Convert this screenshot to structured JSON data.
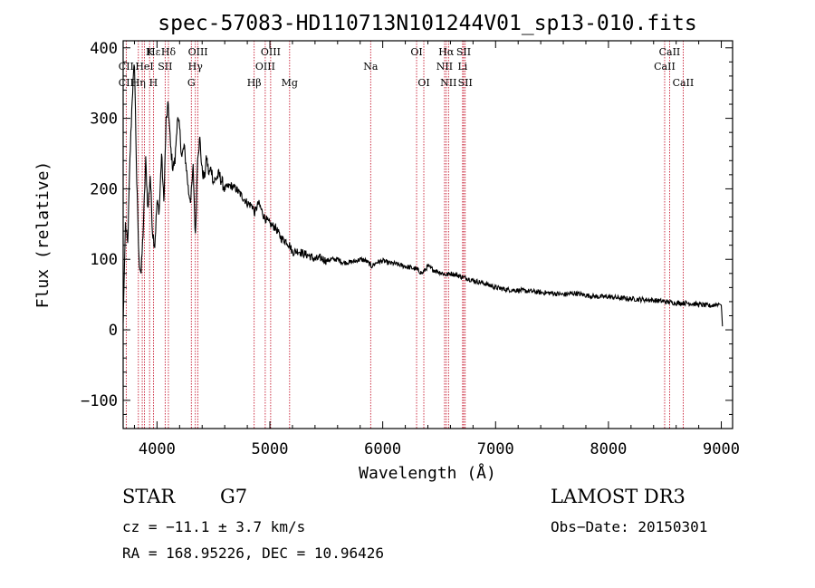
{
  "chart_data": {
    "type": "line",
    "title": "spec-57083-HD110713N101244V01_sp13-010.fits",
    "xlabel": "Wavelength (Å)",
    "ylabel": "Flux (relative)",
    "xlim": [
      3700,
      9100
    ],
    "ylim": [
      -140,
      410
    ],
    "x_ticks": [
      4000,
      5000,
      6000,
      7000,
      8000,
      9000
    ],
    "y_ticks": [
      -100,
      0,
      100,
      200,
      300,
      400
    ],
    "series": [
      {
        "name": "spectrum",
        "x": [
          3700,
          3720,
          3740,
          3760,
          3780,
          3800,
          3820,
          3840,
          3860,
          3880,
          3900,
          3920,
          3940,
          3960,
          3980,
          4000,
          4020,
          4040,
          4060,
          4080,
          4100,
          4120,
          4140,
          4160,
          4180,
          4200,
          4220,
          4240,
          4260,
          4280,
          4300,
          4320,
          4340,
          4360,
          4380,
          4400,
          4420,
          4440,
          4460,
          4480,
          4500,
          4550,
          4600,
          4650,
          4700,
          4750,
          4800,
          4850,
          4861,
          4900,
          4950,
          5000,
          5050,
          5100,
          5150,
          5175,
          5200,
          5250,
          5300,
          5350,
          5400,
          5450,
          5500,
          5550,
          5600,
          5650,
          5700,
          5750,
          5800,
          5850,
          5893,
          5900,
          5950,
          6000,
          6050,
          6100,
          6150,
          6200,
          6250,
          6300,
          6350,
          6400,
          6450,
          6500,
          6563,
          6600,
          6650,
          6700,
          6750,
          6800,
          6900,
          7000,
          7100,
          7200,
          7300,
          7400,
          7500,
          7600,
          7700,
          7800,
          7900,
          8000,
          8100,
          8200,
          8300,
          8400,
          8500,
          8600,
          8700,
          8800,
          8900,
          8950,
          8980,
          9000,
          9010
        ],
        "y": [
          10,
          150,
          120,
          240,
          330,
          380,
          210,
          100,
          80,
          150,
          240,
          170,
          220,
          140,
          120,
          180,
          170,
          250,
          180,
          295,
          320,
          260,
          230,
          240,
          300,
          285,
          245,
          260,
          230,
          195,
          185,
          230,
          130,
          250,
          270,
          225,
          215,
          245,
          220,
          230,
          210,
          220,
          200,
          205,
          200,
          190,
          180,
          175,
          165,
          180,
          160,
          150,
          145,
          130,
          125,
          120,
          110,
          112,
          108,
          105,
          100,
          102,
          98,
          100,
          100,
          95,
          96,
          97,
          100,
          98,
          92,
          90,
          96,
          98,
          95,
          94,
          92,
          90,
          88,
          86,
          80,
          90,
          85,
          82,
          78,
          80,
          78,
          75,
          73,
          70,
          66,
          60,
          57,
          56,
          55,
          53,
          52,
          50,
          52,
          49,
          47,
          47,
          45,
          44,
          43,
          42,
          40,
          38,
          38,
          36,
          34,
          36,
          37,
          35,
          5
        ],
        "color": "#000000"
      }
    ],
    "lines": [
      {
        "label": "Hε",
        "wl": 3970,
        "row": 0
      },
      {
        "label": "K",
        "wl": 3934,
        "row": 0
      },
      {
        "label": "Hδ",
        "wl": 4101,
        "row": 0
      },
      {
        "label": "OIII",
        "wl": 4363,
        "row": 0
      },
      {
        "label": "OIII",
        "wl": 5007,
        "row": 0
      },
      {
        "label": "OI",
        "wl": 6300,
        "row": 0
      },
      {
        "label": "Hα",
        "wl": 6563,
        "row": 0
      },
      {
        "label": "SII",
        "wl": 6717,
        "row": 0
      },
      {
        "label": "CaII",
        "wl": 8542,
        "row": 0
      },
      {
        "label": "CII",
        "wl": 3727,
        "row": 1
      },
      {
        "label": "HeI",
        "wl": 3889,
        "row": 1
      },
      {
        "label": "SII",
        "wl": 4072,
        "row": 1
      },
      {
        "label": "Hγ",
        "wl": 4340,
        "row": 1
      },
      {
        "label": "OIII",
        "wl": 4959,
        "row": 1
      },
      {
        "label": "Na",
        "wl": 5893,
        "row": 1
      },
      {
        "label": "NII",
        "wl": 6548,
        "row": 1
      },
      {
        "label": "Li",
        "wl": 6708,
        "row": 1
      },
      {
        "label": "CaII",
        "wl": 8498,
        "row": 1
      },
      {
        "label": "CII",
        "wl": 3727,
        "row": 2
      },
      {
        "label": "Hη",
        "wl": 3835,
        "row": 2
      },
      {
        "label": "H",
        "wl": 3968,
        "row": 2
      },
      {
        "label": "G",
        "wl": 4304,
        "row": 2
      },
      {
        "label": "Hβ",
        "wl": 4861,
        "row": 2
      },
      {
        "label": "Mg",
        "wl": 5175,
        "row": 2
      },
      {
        "label": "OI",
        "wl": 6364,
        "row": 2
      },
      {
        "label": "NII",
        "wl": 6583,
        "row": 2
      },
      {
        "label": "SII",
        "wl": 6731,
        "row": 2
      },
      {
        "label": "CaII",
        "wl": 8662,
        "row": 2
      }
    ],
    "marker_wavelengths": [
      3727,
      3835,
      3869,
      3889,
      3934,
      3968,
      4072,
      4101,
      4304,
      4340,
      4363,
      4861,
      4959,
      5007,
      5175,
      5893,
      6300,
      6364,
      6548,
      6563,
      6583,
      6708,
      6717,
      6731,
      8498,
      8542,
      8662
    ],
    "grid": false,
    "legend": "none"
  },
  "info": {
    "object_class": "STAR",
    "subclass": "G7",
    "survey": "LAMOST DR3",
    "redshift": "cz = −11.1 ± 3.7 km/s",
    "obs_date": "Obs−Date: 20150301",
    "coords": "RA = 168.95226, DEC =  10.96426"
  },
  "colors": {
    "axis": "#000000",
    "marker": "#c0001a"
  }
}
